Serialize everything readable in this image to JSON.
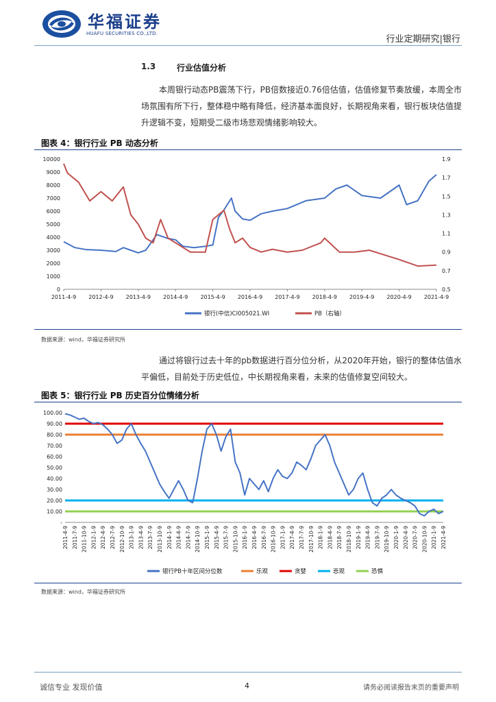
{
  "header": {
    "brand_cn": "华福证券",
    "brand_en": "HUAFU SECURITIES CO.,LTD.",
    "right": "行业定期研究|银行"
  },
  "section": {
    "number": "1.3",
    "title": "行业估值分析",
    "paragraph1": "本周银行动态PB震荡下行，PB倍数接近0.76倍估值，估值修复节奏放缓，本周全市场氛围有所下行，整体稳中略有降低，经济基本面良好，长期视角来看，银行板块估值提升逻辑不变，短期受二级市场悲观情绪影响较大。",
    "paragraph2": "通过将银行过去十年的pb数据进行百分位分析，从2020年开始，银行的整体估值水平偏低，目前处于历史低位，中长期视角来看，未来的估值修复空间较大。"
  },
  "figure4": {
    "title": "图表 4：银行行业 PB 动态分析",
    "source": "数据来源：wind，华福证券研究所"
  },
  "figure5": {
    "title": "图表 5：银行行业 PB 历史百分位情绪分析",
    "source": "数据来源：wind，华福证券研究所"
  },
  "footer": {
    "left": "诚信专业  发现价值",
    "page": "4",
    "right": "请务必阅读报告末页的重要声明"
  },
  "chart_data": [
    {
      "type": "line",
      "title": "图表 4：银行行业 PB 动态分析",
      "x_tick_labels": [
        "2011-4-9",
        "2012-4-9",
        "2013-4-9",
        "2014-4-9",
        "2015-4-9",
        "2016-4-9",
        "2017-4-9",
        "2018-4-9",
        "2019-4-9",
        "2020-4-9",
        "2021-4-9"
      ],
      "y_left": {
        "ylim": [
          0,
          10000
        ],
        "ticks": [
          "0",
          "1000",
          "2000",
          "3000",
          "4000",
          "5000",
          "6000",
          "7000",
          "8000",
          "9000",
          "10000"
        ]
      },
      "y_right": {
        "ylim": [
          0.5,
          1.9
        ],
        "ticks": [
          "0.5",
          "0.7",
          "0.9",
          "1.1",
          "1.3",
          "1.5",
          "1.7",
          "1.9"
        ]
      },
      "series": [
        {
          "name": "银行(中信)CI005021.WI",
          "axis": "left",
          "color": "#4472c4",
          "x": [
            0,
            0.3,
            0.6,
            1.0,
            1.4,
            1.6,
            1.8,
            2.0,
            2.2,
            2.5,
            2.8,
            3.0,
            3.2,
            3.5,
            3.8,
            4.0,
            4.15,
            4.3,
            4.5,
            4.6,
            4.8,
            5.0,
            5.3,
            5.6,
            6.0,
            6.5,
            7.0,
            7.3,
            7.6,
            8.0,
            8.5,
            9.0,
            9.2,
            9.5,
            9.8,
            10.0
          ],
          "values": [
            3650,
            3200,
            3050,
            3000,
            2900,
            3200,
            3000,
            2800,
            3000,
            4200,
            3900,
            3800,
            3300,
            3200,
            3300,
            3400,
            5500,
            6100,
            7000,
            6000,
            5400,
            5300,
            5800,
            6000,
            6200,
            6800,
            7000,
            7700,
            8000,
            7200,
            7000,
            8000,
            6500,
            6800,
            8300,
            8800
          ]
        },
        {
          "name": "PB（右轴）",
          "axis": "right",
          "color": "#c0504d",
          "x": [
            0,
            0.1,
            0.4,
            0.7,
            1.0,
            1.3,
            1.6,
            1.8,
            2.0,
            2.2,
            2.4,
            2.6,
            2.8,
            3.0,
            3.4,
            3.8,
            4.0,
            4.15,
            4.3,
            4.45,
            4.6,
            4.8,
            5.0,
            5.3,
            5.6,
            6.0,
            6.4,
            6.9,
            7.0,
            7.4,
            7.8,
            8.2,
            8.6,
            9.0,
            9.5,
            10.0
          ],
          "values": [
            1.85,
            1.75,
            1.65,
            1.45,
            1.55,
            1.45,
            1.6,
            1.3,
            1.2,
            1.05,
            1.0,
            1.25,
            1.05,
            1.0,
            0.9,
            0.9,
            1.25,
            1.3,
            1.35,
            1.15,
            1.0,
            1.05,
            0.95,
            0.9,
            0.93,
            0.9,
            0.92,
            1.0,
            1.05,
            0.9,
            0.9,
            0.92,
            0.87,
            0.82,
            0.75,
            0.76
          ]
        }
      ]
    },
    {
      "type": "line",
      "title": "图表 5：银行行业 PB 历史百分位情绪分析",
      "x_tick_labels": [
        "2011-4-9",
        "2011-7-9",
        "2011-10-9",
        "2012-1-9",
        "2012-4-9",
        "2012-7-9",
        "2012-10-9",
        "2013-1-9",
        "2013-4-9",
        "2013-7-9",
        "2013-10-9",
        "2014-1-9",
        "2014-4-9",
        "2014-7-9",
        "2014-10-9",
        "2015-1-9",
        "2015-4-9",
        "2015-7-9",
        "2015-10-9",
        "2016-1-9",
        "2016-4-9",
        "2016-7-9",
        "2016-10-9",
        "2017-1-9",
        "2017-4-9",
        "2017-7-9",
        "2017-10-9",
        "2018-1-9",
        "2018-4-9",
        "2018-7-9",
        "2018-10-9",
        "2019-1-9",
        "2019-4-9",
        "2019-7-9",
        "2019-10-9",
        "2020-1-9",
        "2020-4-9",
        "2020-7-9",
        "2020-10-9",
        "2021-1-9",
        "2021-4-9"
      ],
      "ylim": [
        0,
        100
      ],
      "y_tick_labels": [
        "-",
        "10.00",
        "20.00",
        "30.00",
        "40.00",
        "50.00",
        "60.00",
        "70.00",
        "80.00",
        "90.00",
        "100.00"
      ],
      "series": [
        {
          "name": "银行PB十年区间分位数",
          "color": "#4472c4",
          "x": [
            0,
            0.5,
            1.0,
            1.5,
            2.0,
            2.5,
            3.0,
            3.5,
            4.0,
            4.5,
            5.0,
            5.5,
            6.0,
            6.5,
            7.0,
            7.5,
            8.0,
            8.5,
            9.0,
            9.5,
            10.0,
            10.5,
            11.0,
            11.5,
            12.0,
            12.5,
            13.0,
            13.5,
            14.0,
            14.5,
            15.0,
            15.5,
            16.0,
            16.5,
            17.0,
            17.5,
            18.0,
            18.5,
            19.0,
            19.5,
            20.0,
            20.5,
            21.0,
            21.5,
            22.0,
            22.5,
            23.0,
            23.5,
            24.0,
            24.5,
            25.0,
            25.5,
            26.0,
            26.5,
            27.0,
            27.5,
            28.0,
            28.5,
            29.0,
            29.5,
            30.0,
            30.5,
            31.0,
            31.5,
            32.0,
            32.5,
            33.0,
            33.5,
            34.0,
            34.5,
            35.0,
            35.5,
            36.0,
            36.5,
            37.0,
            37.5,
            38.0,
            38.5,
            39.0,
            39.5,
            40.0
          ],
          "values": [
            99,
            98,
            96,
            94,
            95,
            92,
            90,
            91,
            89,
            85,
            80,
            72,
            75,
            85,
            90,
            80,
            72,
            65,
            55,
            45,
            35,
            28,
            22,
            30,
            38,
            30,
            20,
            18,
            40,
            65,
            85,
            90,
            80,
            65,
            78,
            85,
            55,
            45,
            25,
            40,
            35,
            30,
            38,
            28,
            40,
            48,
            42,
            40,
            45,
            55,
            52,
            48,
            58,
            70,
            75,
            80,
            70,
            55,
            45,
            35,
            25,
            30,
            40,
            45,
            30,
            18,
            15,
            22,
            25,
            30,
            25,
            22,
            20,
            18,
            15,
            8,
            6,
            10,
            12,
            8,
            10
          ]
        },
        {
          "name": "乐观",
          "color": "#ed7d31",
          "values": [
            80
          ]
        },
        {
          "name": "贪婪",
          "color": "#e00000",
          "values": [
            90
          ]
        },
        {
          "name": "悲观",
          "color": "#00b0f0",
          "values": [
            20
          ]
        },
        {
          "name": "恐惧",
          "color": "#92d050",
          "values": [
            10
          ]
        }
      ]
    }
  ]
}
